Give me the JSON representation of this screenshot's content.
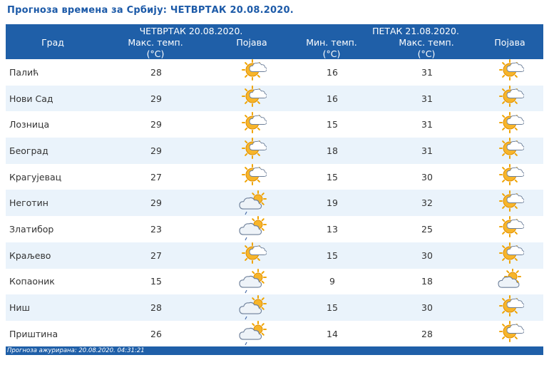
{
  "title": "Прогноза времена за Србију: ЧЕТВРТАК  20.08.2020.",
  "header": {
    "city": "Град",
    "day1": "ЧЕТВРТАК  20.08.2020.",
    "day1_max": "Макс. темп.",
    "day1_unit": "(°C)",
    "day1_phenomenon": "Појава",
    "day2": "ПЕТАК  21.08.2020.",
    "day2_min": "Мин. темп.",
    "day2_min_unit": "(°C)",
    "day2_max": "Макс. темп.",
    "day2_max_unit": "(°C)",
    "day2_phenomenon": "Појава"
  },
  "rows": [
    {
      "city": "Палић",
      "max1": "28",
      "icon1": "sun-cloud-icon",
      "min2": "16",
      "max2": "31",
      "icon2": "sun-cloud-icon"
    },
    {
      "city": "Нови Сад",
      "max1": "29",
      "icon1": "sun-cloud-icon",
      "min2": "16",
      "max2": "31",
      "icon2": "sun-cloud-icon"
    },
    {
      "city": "Лозница",
      "max1": "29",
      "icon1": "sun-cloud-icon",
      "min2": "15",
      "max2": "31",
      "icon2": "sun-cloud-icon"
    },
    {
      "city": "Београд",
      "max1": "29",
      "icon1": "sun-cloud-icon",
      "min2": "18",
      "max2": "31",
      "icon2": "sun-cloud-icon"
    },
    {
      "city": "Крагујевац",
      "max1": "27",
      "icon1": "sun-cloud-icon",
      "min2": "15",
      "max2": "30",
      "icon2": "sun-cloud-icon"
    },
    {
      "city": "Неготин",
      "max1": "29",
      "icon1": "cloud-sun-rain-icon",
      "min2": "19",
      "max2": "32",
      "icon2": "sun-cloud-icon"
    },
    {
      "city": "Златибор",
      "max1": "23",
      "icon1": "cloud-sun-rain-icon",
      "min2": "13",
      "max2": "25",
      "icon2": "sun-cloud-icon"
    },
    {
      "city": "Краљево",
      "max1": "27",
      "icon1": "sun-cloud-icon",
      "min2": "15",
      "max2": "30",
      "icon2": "sun-cloud-icon"
    },
    {
      "city": "Копаоник",
      "max1": "15",
      "icon1": "cloud-sun-rain-icon",
      "min2": "9",
      "max2": "18",
      "icon2": "cloud-sun-icon"
    },
    {
      "city": "Ниш",
      "max1": "28",
      "icon1": "cloud-sun-rain-icon",
      "min2": "15",
      "max2": "30",
      "icon2": "sun-cloud-icon"
    },
    {
      "city": "Приштина",
      "max1": "26",
      "icon1": "cloud-sun-rain-icon",
      "min2": "14",
      "max2": "28",
      "icon2": "sun-cloud-icon"
    }
  ],
  "footer": "Прогноза ажурирана:  20.08.2020. 04:31:21",
  "colors": {
    "header_bg": "#1f5fa8",
    "title": "#1c5aa8",
    "row_alt": "#eaf3fb"
  }
}
